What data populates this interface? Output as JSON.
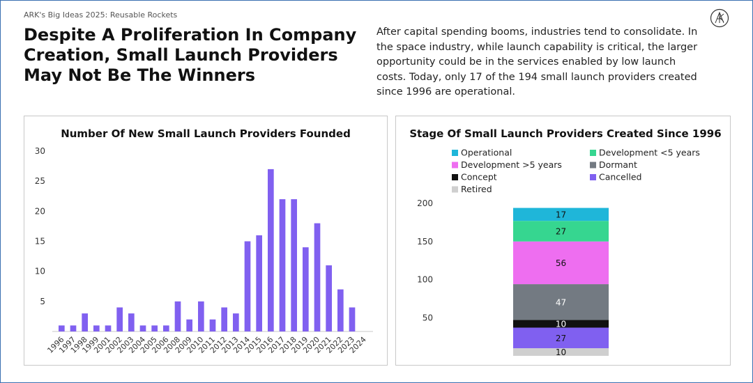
{
  "supertitle": "ARK's Big Ideas 2025: Reusable Rockets",
  "headline": "Despite A Proliferation In Company Creation, Small Launch Providers May Not Be The Winners",
  "intro": "After capital spending booms, industries tend to consolidate. In the space industry, while launch capability is critical, the larger opportunity could be in the services enabled by low launch costs. Today, only 17 of the 194 small launch providers created since 1996 are operational.",
  "chart_data": [
    {
      "type": "bar",
      "title": "Number Of New Small Launch Providers Founded",
      "categories": [
        "1996",
        "1997",
        "1998",
        "1999",
        "2001",
        "2002",
        "2003",
        "2004",
        "2005",
        "2006",
        "2008",
        "2009",
        "2010",
        "2011",
        "2012",
        "2013",
        "2014",
        "2015",
        "2016",
        "2017",
        "2018",
        "2019",
        "2020",
        "2021",
        "2022",
        "2023",
        "2024"
      ],
      "values": [
        1,
        1,
        3,
        1,
        1,
        4,
        3,
        1,
        1,
        1,
        5,
        2,
        5,
        2,
        4,
        3,
        15,
        16,
        27,
        22,
        22,
        14,
        18,
        11,
        7,
        4,
        0
      ],
      "yticks": [
        5,
        10,
        15,
        20,
        25,
        30
      ],
      "ylim": [
        0,
        30
      ],
      "color": "#8060f0",
      "grid": false
    },
    {
      "type": "bar",
      "stacked": true,
      "title": "Stage Of Small Launch Providers Created Since 1996",
      "yticks": [
        50,
        100,
        150,
        200
      ],
      "ylim": [
        0,
        200
      ],
      "legend_position": "top",
      "series": [
        {
          "name": "Retired",
          "value": 10,
          "color": "#cfcfcf"
        },
        {
          "name": "Cancelled",
          "value": 27,
          "color": "#8060f0"
        },
        {
          "name": "Concept",
          "value": 10,
          "color": "#111111"
        },
        {
          "name": "Dormant",
          "value": 47,
          "color": "#737a82"
        },
        {
          "name": "Development >5 years",
          "value": 56,
          "color": "#ee6ef0"
        },
        {
          "name": "Development <5 years",
          "value": 27,
          "color": "#36d690"
        },
        {
          "name": "Operational",
          "value": 17,
          "color": "#1fb6d9"
        }
      ],
      "legend_order": [
        "Operational",
        "Development <5 years",
        "Development >5 years",
        "Dormant",
        "Concept",
        "Cancelled",
        "Retired"
      ]
    }
  ]
}
